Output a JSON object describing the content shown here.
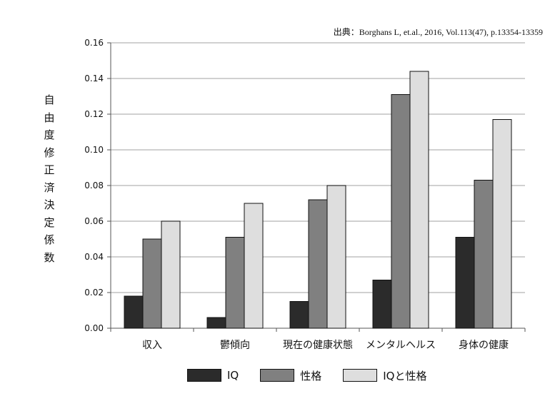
{
  "chart_data": {
    "type": "bar",
    "title": "",
    "source": "出典：Borghans L, et.al., 2016, Vol.113(47), p.13354-13359",
    "xlabel": "",
    "ylabel": "自由度修正済決定係数",
    "ylim": [
      0,
      0.16
    ],
    "yticks": [
      "0.00",
      "0.02",
      "0.04",
      "0.06",
      "0.08",
      "0.10",
      "0.12",
      "0.14",
      "0.16"
    ],
    "categories": [
      "収入",
      "鬱傾向",
      "現在の健康状態",
      "メンタルヘルス",
      "身体の健康"
    ],
    "series": [
      {
        "name": "IQ",
        "color": "#2b2b2b",
        "values": [
          0.018,
          0.006,
          0.015,
          0.027,
          0.051
        ]
      },
      {
        "name": "性格",
        "color": "#808080",
        "values": [
          0.05,
          0.051,
          0.072,
          0.131,
          0.083
        ]
      },
      {
        "name": "IQと性格",
        "color": "#dedede",
        "values": [
          0.06,
          0.07,
          0.08,
          0.144,
          0.117
        ]
      }
    ],
    "grid": true,
    "legend_position": "bottom"
  }
}
